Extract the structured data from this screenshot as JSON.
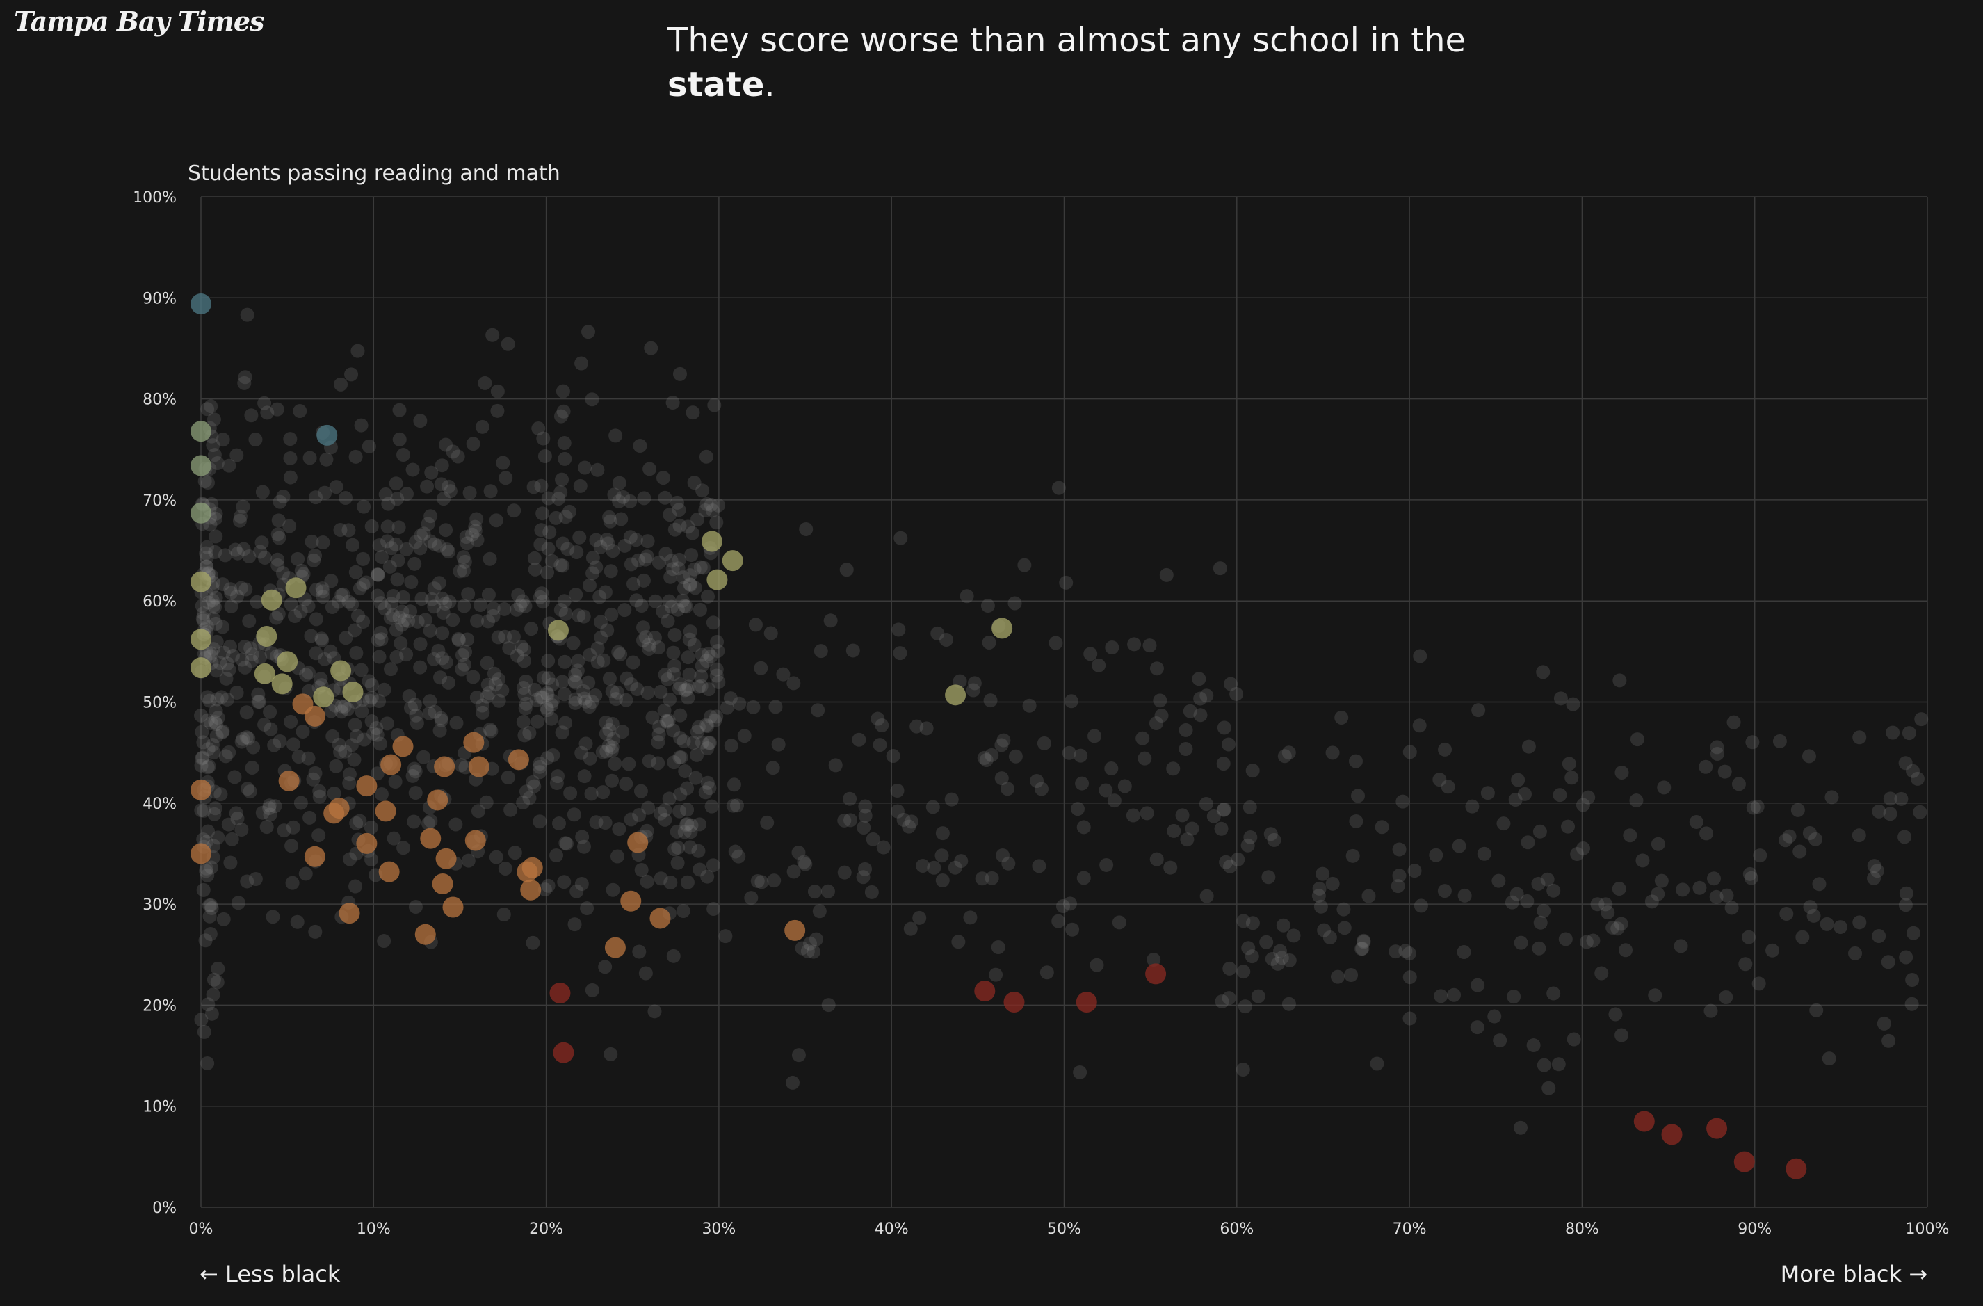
{
  "brand": {
    "logo_text": "Tampa Bay Times"
  },
  "headline": {
    "line1": "They score worse than almost any school in the",
    "bold": "state",
    "period": "."
  },
  "axis_labels": {
    "left": "← Less black",
    "right": "More black →"
  },
  "colors": {
    "background": "#161616",
    "gray_dot": "#8a8a8a",
    "highlight_red": "#8b1e1e",
    "highlight_orange": "#b0603a",
    "highlight_yellow": "#9a9a5a"
  },
  "chart_data": {
    "type": "scatter",
    "title": "",
    "ylabel": "Students passing reading and math",
    "xlabel": "",
    "xlim": [
      0,
      100
    ],
    "ylim": [
      0,
      100
    ],
    "x_ticks": [
      "0%",
      "10%",
      "20%",
      "30%",
      "40%",
      "50%",
      "60%",
      "70%",
      "80%",
      "90%",
      "100%"
    ],
    "y_ticks": [
      "0%",
      "10%",
      "20%",
      "30%",
      "40%",
      "50%",
      "60%",
      "70%",
      "80%",
      "90%",
      "100%"
    ],
    "grid": true,
    "background_points": {
      "note_count": 1400,
      "clusters": [
        {
          "x_range": [
            0,
            1
          ],
          "y_range": [
            9,
            95
          ],
          "n": 120
        },
        {
          "x_range": [
            1,
            30
          ],
          "y_range": [
            19,
            92
          ],
          "n": 800
        },
        {
          "x_range": [
            20,
            60
          ],
          "y_range": [
            6,
            75
          ],
          "n": 260
        },
        {
          "x_range": [
            60,
            100
          ],
          "y_range": [
            5,
            60
          ],
          "n": 220
        }
      ]
    },
    "highlighted_schools": [
      {
        "x": 83.6,
        "y": 8.5,
        "color": "red"
      },
      {
        "x": 85.2,
        "y": 7.2,
        "color": "red"
      },
      {
        "x": 87.8,
        "y": 7.8,
        "color": "red"
      },
      {
        "x": 89.4,
        "y": 4.5,
        "color": "red"
      },
      {
        "x": 92.4,
        "y": 3.8,
        "color": "red"
      },
      {
        "x": 21.0,
        "y": 15.3,
        "color": "red"
      },
      {
        "x": 20.8,
        "y": 21.2,
        "color": "red"
      },
      {
        "x": 45.4,
        "y": 21.4,
        "color": "red"
      },
      {
        "x": 47.1,
        "y": 20.3,
        "color": "red"
      },
      {
        "x": 51.3,
        "y": 20.3,
        "color": "red"
      },
      {
        "x": 55.3,
        "y": 23.1,
        "color": "red"
      },
      {
        "x": 34.4,
        "y": 27.4,
        "color": "orange"
      },
      {
        "x": 24.0,
        "y": 25.7,
        "color": "orange"
      },
      {
        "x": 26.6,
        "y": 28.6,
        "color": "orange"
      },
      {
        "x": 24.9,
        "y": 30.3,
        "color": "orange"
      },
      {
        "x": 25.3,
        "y": 36.1,
        "color": "orange"
      },
      {
        "x": 13.0,
        "y": 27.0,
        "color": "orange"
      },
      {
        "x": 14.6,
        "y": 29.7,
        "color": "orange"
      },
      {
        "x": 14.0,
        "y": 32.0,
        "color": "orange"
      },
      {
        "x": 10.9,
        "y": 33.2,
        "color": "orange"
      },
      {
        "x": 8.6,
        "y": 29.1,
        "color": "orange"
      },
      {
        "x": 6.6,
        "y": 34.7,
        "color": "orange"
      },
      {
        "x": 14.2,
        "y": 34.5,
        "color": "orange"
      },
      {
        "x": 13.3,
        "y": 36.5,
        "color": "orange"
      },
      {
        "x": 9.6,
        "y": 36.0,
        "color": "orange"
      },
      {
        "x": 15.9,
        "y": 36.3,
        "color": "orange"
      },
      {
        "x": 19.1,
        "y": 31.4,
        "color": "orange"
      },
      {
        "x": 18.9,
        "y": 33.2,
        "color": "orange"
      },
      {
        "x": 19.2,
        "y": 33.6,
        "color": "orange"
      },
      {
        "x": 7.7,
        "y": 39.0,
        "color": "orange"
      },
      {
        "x": 8.0,
        "y": 39.5,
        "color": "orange"
      },
      {
        "x": 10.7,
        "y": 39.2,
        "color": "orange"
      },
      {
        "x": 13.7,
        "y": 40.3,
        "color": "orange"
      },
      {
        "x": 9.6,
        "y": 41.7,
        "color": "orange"
      },
      {
        "x": 5.1,
        "y": 42.2,
        "color": "orange"
      },
      {
        "x": 11.0,
        "y": 43.8,
        "color": "orange"
      },
      {
        "x": 14.1,
        "y": 43.6,
        "color": "orange"
      },
      {
        "x": 16.1,
        "y": 43.6,
        "color": "orange"
      },
      {
        "x": 18.4,
        "y": 44.3,
        "color": "orange"
      },
      {
        "x": 11.7,
        "y": 45.6,
        "color": "orange"
      },
      {
        "x": 15.8,
        "y": 46.0,
        "color": "orange"
      },
      {
        "x": 0.0,
        "y": 41.3,
        "color": "orange"
      },
      {
        "x": 0.0,
        "y": 35.0,
        "color": "orange"
      },
      {
        "x": 6.6,
        "y": 48.6,
        "color": "orange"
      },
      {
        "x": 5.9,
        "y": 49.8,
        "color": "orange"
      },
      {
        "x": 7.1,
        "y": 50.5,
        "color": "yellow"
      },
      {
        "x": 8.8,
        "y": 51.0,
        "color": "yellow"
      },
      {
        "x": 4.7,
        "y": 51.8,
        "color": "yellow"
      },
      {
        "x": 3.7,
        "y": 52.8,
        "color": "yellow"
      },
      {
        "x": 8.1,
        "y": 53.1,
        "color": "yellow"
      },
      {
        "x": 5.0,
        "y": 54.0,
        "color": "yellow"
      },
      {
        "x": 0.0,
        "y": 53.4,
        "color": "yellow"
      },
      {
        "x": 0.0,
        "y": 56.2,
        "color": "yellow"
      },
      {
        "x": 3.8,
        "y": 56.5,
        "color": "yellow"
      },
      {
        "x": 20.7,
        "y": 57.1,
        "color": "yellow"
      },
      {
        "x": 4.1,
        "y": 60.1,
        "color": "yellow"
      },
      {
        "x": 5.5,
        "y": 61.3,
        "color": "yellow"
      },
      {
        "x": 0.0,
        "y": 61.9,
        "color": "yellow"
      },
      {
        "x": 29.9,
        "y": 62.1,
        "color": "yellow"
      },
      {
        "x": 30.8,
        "y": 64.0,
        "color": "yellow"
      },
      {
        "x": 29.6,
        "y": 65.9,
        "color": "yellow"
      },
      {
        "x": 43.7,
        "y": 50.7,
        "color": "yellow"
      },
      {
        "x": 46.4,
        "y": 57.3,
        "color": "yellow"
      },
      {
        "x": 0.0,
        "y": 68.7,
        "color": "green"
      },
      {
        "x": 0.0,
        "y": 73.4,
        "color": "green"
      },
      {
        "x": 7.3,
        "y": 76.4,
        "color": "teal"
      },
      {
        "x": 0.0,
        "y": 76.8,
        "color": "green"
      },
      {
        "x": 0.0,
        "y": 89.4,
        "color": "teal"
      }
    ]
  }
}
